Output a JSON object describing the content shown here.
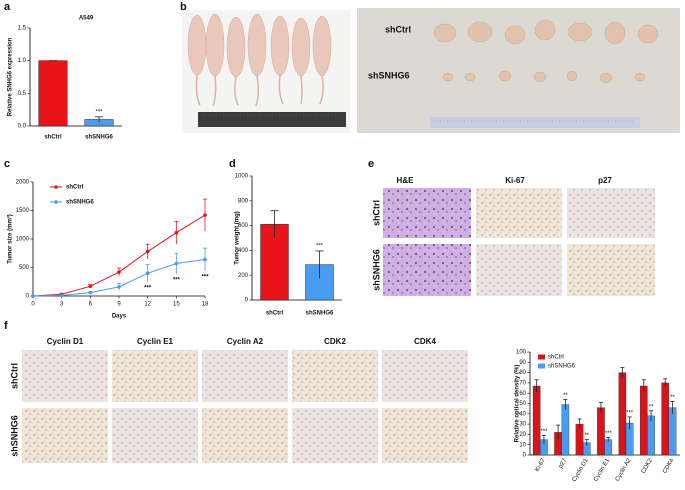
{
  "figure": {
    "letters": [
      "a",
      "b",
      "c",
      "d",
      "e",
      "f"
    ],
    "b": {
      "rows": [
        "shCtrl",
        "shSNHG6"
      ]
    },
    "e": {
      "columns": [
        "H&E",
        "Ki-67",
        "p27"
      ],
      "rows": [
        "shCtrl",
        "shSNHG6"
      ]
    },
    "f": {
      "columns": [
        "Cyclin D1",
        "Cyclin E1",
        "Cyclin A2",
        "CDK2",
        "CDK4"
      ],
      "rows": [
        "shCtrl",
        "shSNHG6"
      ]
    }
  },
  "chart_data": [
    {
      "type": "bar",
      "title": "A549",
      "ylabel": "Relative SNHG6 expression",
      "categories": [
        "shCtrl",
        "shSNHG6"
      ],
      "values": [
        1.0,
        0.1
      ],
      "errors": [
        0,
        0.04
      ],
      "colors": [
        "#e8141a",
        "#4a9cf0"
      ],
      "ylim": [
        0,
        1.5
      ],
      "yticks": [
        {
          "value": 0,
          "label": "0.0"
        },
        {
          "value": 0.5,
          "label": "0.5"
        },
        {
          "value": 1,
          "label": "1.0"
        },
        {
          "value": 1.5,
          "label": "1.5"
        }
      ],
      "annotation": "***"
    },
    {
      "type": "line",
      "xlabel": "Days",
      "ylabel": "Tumor size (mm³)",
      "x": [
        0,
        3,
        6,
        9,
        12,
        15,
        18
      ],
      "series": [
        {
          "name": "shCtrl",
          "color": "#e8141a",
          "values": [
            0,
            30,
            170,
            420,
            780,
            1110,
            1420
          ],
          "errors": [
            0,
            10,
            30,
            70,
            130,
            200,
            280
          ]
        },
        {
          "name": "shSNHG6",
          "color": "#4a9cf0",
          "values": [
            0,
            10,
            60,
            160,
            400,
            570,
            640
          ],
          "errors": [
            0,
            5,
            20,
            60,
            150,
            180,
            200
          ]
        }
      ],
      "xlim": [
        0,
        18
      ],
      "xticks": [
        0,
        3,
        6,
        9,
        12,
        15,
        18
      ],
      "ylim": [
        0,
        2000
      ],
      "yticks": [
        0,
        500,
        1000,
        1500,
        2000
      ],
      "annotations": [
        {
          "text": "***",
          "x": 12
        },
        {
          "text": "***",
          "x": 15
        },
        {
          "text": "***",
          "x": 18
        }
      ]
    },
    {
      "type": "bar",
      "ylabel": "Tumor weight (mg)",
      "categories": [
        "shCtrl",
        "shSNHG6"
      ],
      "values": [
        610,
        285
      ],
      "errors": [
        110,
        110
      ],
      "colors": [
        "#e8141a",
        "#4a9cf0"
      ],
      "ylim": [
        0,
        1000
      ],
      "yticks": [
        0,
        200,
        400,
        600,
        800,
        1000
      ],
      "annotation": "***"
    },
    {
      "type": "bar",
      "ylabel": "Relative optical density (%)",
      "categories": [
        "Ki-67",
        "p27",
        "Cyclin D1",
        "Cyclin E1",
        "Cyclin A2",
        "CDK2",
        "CDK4"
      ],
      "series": [
        {
          "name": "shCtrl",
          "color": "#d7141a",
          "values": [
            67,
            22,
            30,
            46,
            80,
            67,
            70
          ],
          "errors": [
            6,
            7,
            5,
            5,
            5,
            6,
            4
          ]
        },
        {
          "name": "shSNHG6",
          "color": "#4a9cf0",
          "values": [
            15,
            49,
            12,
            15,
            31,
            38,
            46
          ],
          "errors": [
            4,
            5,
            3,
            2,
            6,
            5,
            6
          ]
        }
      ],
      "ylim": [
        0,
        100
      ],
      "yticks": [
        0,
        10,
        20,
        30,
        40,
        50,
        60,
        70,
        80,
        90,
        100
      ],
      "annotations": [
        "***",
        "**",
        "**",
        "***",
        "***",
        "**",
        "**"
      ]
    }
  ]
}
